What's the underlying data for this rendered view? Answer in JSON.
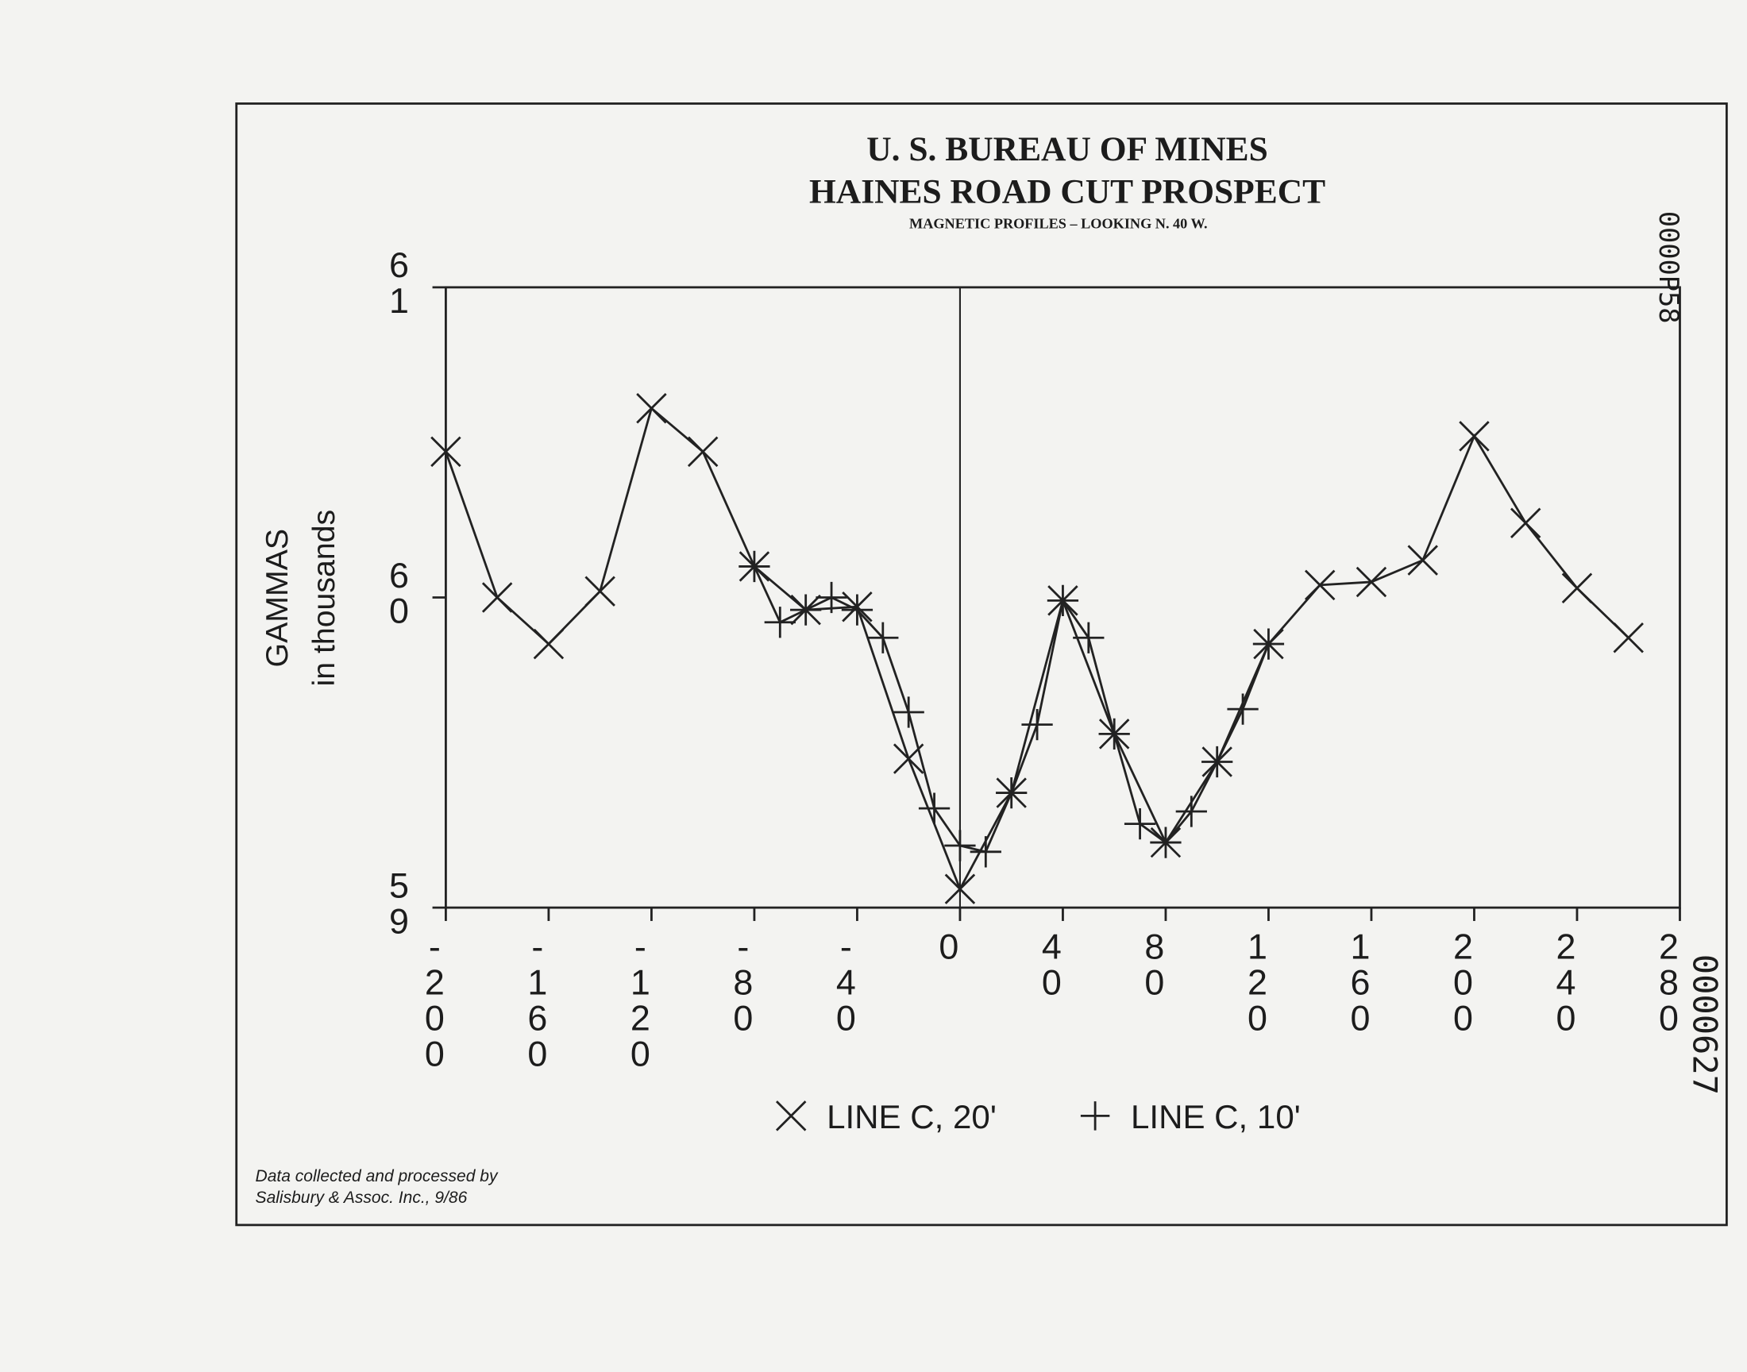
{
  "chart_data": {
    "type": "line",
    "title": [
      "U. S. BUREAU OF MINES",
      "HAINES ROAD CUT PROSPECT"
    ],
    "subtitle": "MAGNETIC PROFILES – LOOKING N. 40 W.",
    "ylabel": [
      "GAMMAS",
      "in thousands"
    ],
    "xlim": [
      -200,
      280
    ],
    "xticks": [
      -200,
      -160,
      -120,
      -80,
      -40,
      0,
      40,
      80,
      120,
      160,
      200,
      240,
      280
    ],
    "ylim": [
      59,
      61
    ],
    "yticks": [
      59,
      60,
      61
    ],
    "series": [
      {
        "name": "LINE C, 20'",
        "color": "#222222",
        "marker": "x",
        "x": [
          -200,
          -180,
          -160,
          -140,
          -120,
          -100,
          -80,
          -60,
          -40,
          -20,
          0,
          20,
          40,
          60,
          80,
          100,
          120,
          140,
          160,
          180,
          200,
          220,
          240,
          260
        ],
        "values": [
          60.47,
          60.0,
          59.85,
          60.02,
          60.61,
          60.47,
          60.1,
          59.96,
          59.97,
          59.48,
          59.06,
          59.37,
          59.99,
          59.56,
          59.21,
          59.47,
          59.85,
          60.04,
          60.05,
          60.12,
          60.52,
          60.24,
          60.03,
          59.87
        ]
      },
      {
        "name": "LINE C, 10'",
        "color": "#222222",
        "marker": "plus",
        "x": [
          -80,
          -70,
          -60,
          -50,
          -40,
          -30,
          -20,
          -10,
          0,
          10,
          20,
          30,
          40,
          50,
          60,
          70,
          80,
          90,
          100,
          110,
          120
        ],
        "values": [
          60.1,
          59.92,
          59.96,
          60.0,
          59.96,
          59.87,
          59.63,
          59.32,
          59.2,
          59.18,
          59.37,
          59.59,
          59.99,
          59.87,
          59.56,
          59.27,
          59.21,
          59.31,
          59.47,
          59.64,
          59.85
        ]
      }
    ],
    "note": [
      "Data collected and processed by",
      "Salisbury & Assoc. Inc., 9/86"
    ]
  },
  "stamps": [
    "0000P58",
    "0000627"
  ]
}
